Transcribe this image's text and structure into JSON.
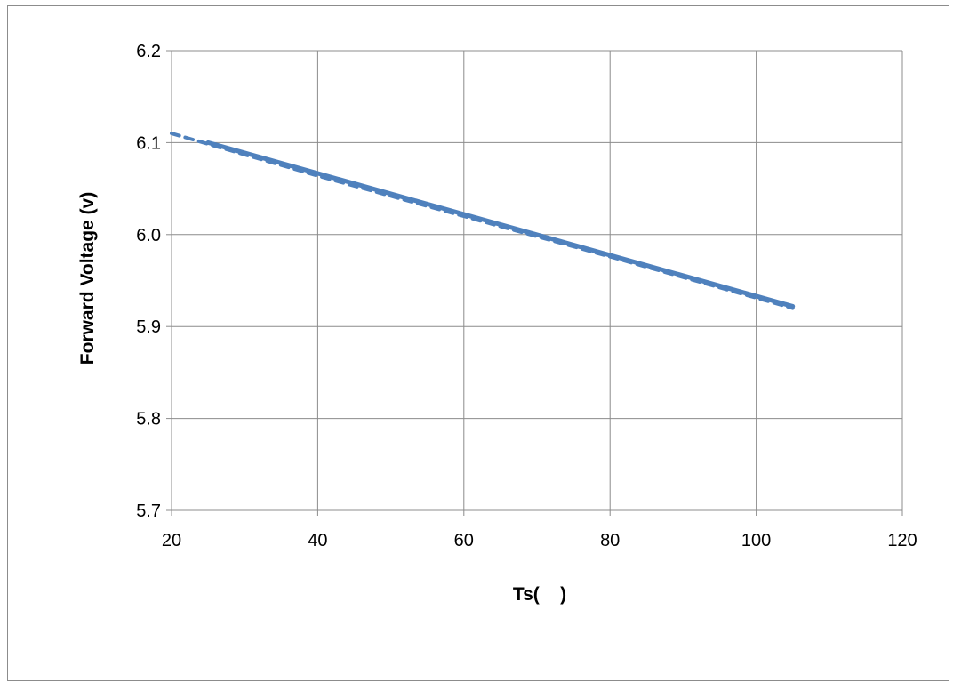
{
  "chart_data": {
    "type": "line",
    "title": "",
    "xlabel": "Ts(    )",
    "ylabel": "Forward Voltage (v)",
    "xlim": [
      20,
      120
    ],
    "ylim": [
      5.7,
      6.2
    ],
    "x_ticks": [
      "20",
      "40",
      "60",
      "80",
      "100",
      "120"
    ],
    "y_ticks": [
      "5.7",
      "5.8",
      "5.9",
      "6.0",
      "6.1",
      "6.2"
    ],
    "grid": true,
    "legend": "none",
    "series": [
      {
        "style": "solid",
        "color": "#4f81bd",
        "x": [
          25,
          105
        ],
        "y": [
          6.1,
          5.922
        ]
      },
      {
        "style": "dashed",
        "color": "#4f81bd",
        "x": [
          20,
          40,
          60,
          80,
          105
        ],
        "y": [
          6.11,
          6.064,
          6.02,
          5.976,
          5.92
        ]
      }
    ]
  }
}
